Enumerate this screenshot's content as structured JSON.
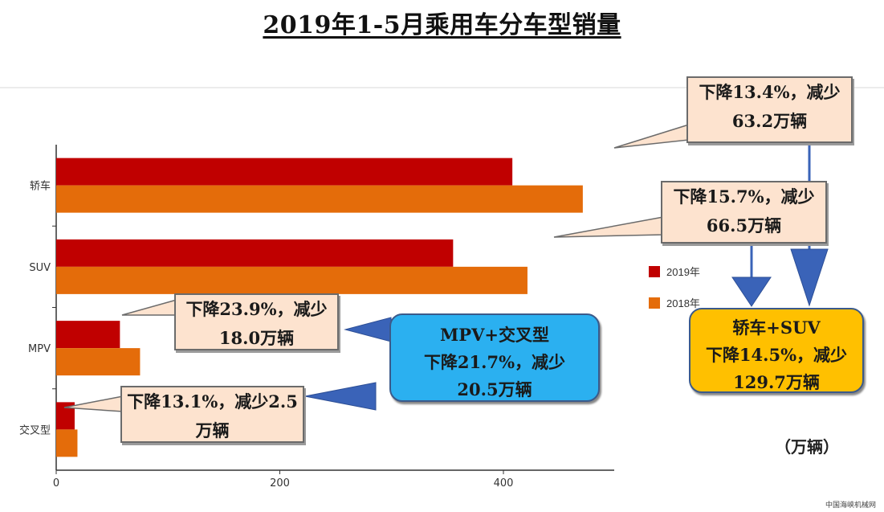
{
  "title": "2019年1-5月乘用车分车型销量",
  "unit_label": "（万辆）",
  "watermark": "中国海峡机械网",
  "colors": {
    "series_2019": "#c00000",
    "series_2018": "#e46c0a",
    "callout_peach": "#fde3cf",
    "callout_blue": "#2bb0f0",
    "callout_gold": "#ffc000",
    "arrow": "#3a63b8"
  },
  "callouts": {
    "sedan": "下降13.4%，减少63.2万辆",
    "suv": "下降15.7%，减少66.5万辆",
    "mpv": "下降23.9%，减少18.0万辆",
    "crossover": "下降13.1%，减少2.5万辆",
    "mpv_crossover_title": "MPV+交叉型",
    "mpv_crossover_text": "下降21.7%，减少20.5万辆",
    "sedan_suv_title": "轿车+SUV",
    "sedan_suv_text": "下降14.5%，减少129.7万辆"
  },
  "chart_data": {
    "type": "bar",
    "orientation": "horizontal",
    "categories": [
      "轿车",
      "SUV",
      "MPV",
      "交叉型"
    ],
    "series": [
      {
        "name": "2019年",
        "values": [
          408,
          355,
          57,
          16.5
        ]
      },
      {
        "name": "2018年",
        "values": [
          471,
          421.5,
          75,
          19
        ]
      }
    ],
    "x_ticks": [
      "0",
      "200",
      "400"
    ],
    "xlim": [
      0,
      500
    ],
    "legend_position": "right",
    "grid": false
  }
}
